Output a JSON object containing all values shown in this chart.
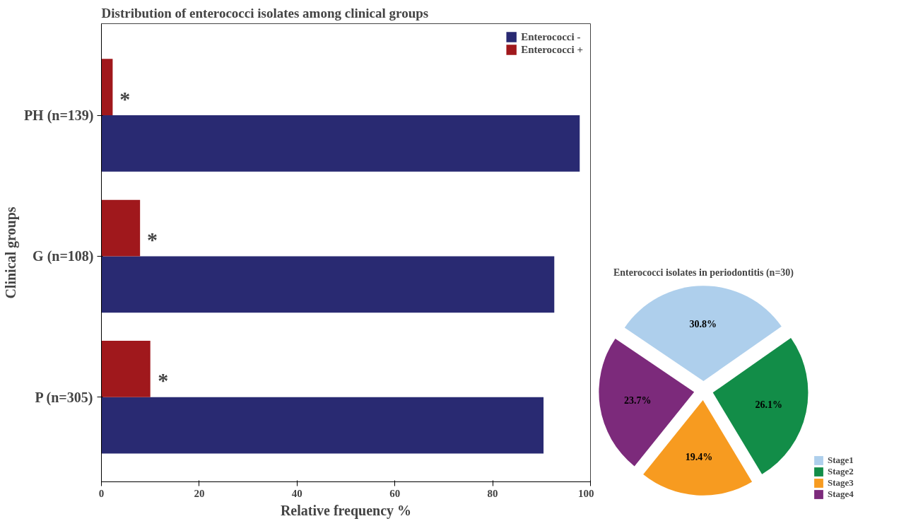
{
  "chart_data": [
    {
      "type": "bar",
      "orientation": "horizontal",
      "title": "Distribution of enterococci isolates among clinical groups",
      "xlabel": "Relative frequency %",
      "ylabel": "Clinical groups",
      "categories": [
        "PH (n=139)",
        "G (n=108)",
        "P (n=305)"
      ],
      "series": [
        {
          "name": "Enterococci -",
          "color": "#292a72",
          "values": [
            97.8,
            92.6,
            90.4
          ]
        },
        {
          "name": "Enterococci +",
          "color": "#a0181c",
          "values": [
            2.3,
            7.9,
            10.0
          ]
        }
      ],
      "xlim": [
        0,
        100
      ],
      "xticks": [
        0,
        20,
        40,
        60,
        80,
        100
      ],
      "grid": false,
      "legend": "top right",
      "annotations": [
        {
          "text": "*",
          "x": 4.8,
          "y": "PH (n=139)"
        },
        {
          "text": "*",
          "x": 10.4,
          "y": "G (n=108)"
        },
        {
          "text": "*",
          "x": 12.6,
          "y": "P (n=305)"
        }
      ]
    },
    {
      "type": "pie",
      "title": "Enterococci isolates in periodontitis (n=30)",
      "categories": [
        "Stage1",
        "Stage2",
        "Stage3",
        "Stage4"
      ],
      "values": [
        30.8,
        26.1,
        19.4,
        23.7
      ],
      "colors": [
        "#aecfec",
        "#128d48",
        "#f79b20",
        "#7c2a7b"
      ],
      "value_labels": [
        "30.8%",
        "26.1%",
        "19.4%",
        "23.7%"
      ],
      "legend": "right"
    }
  ]
}
